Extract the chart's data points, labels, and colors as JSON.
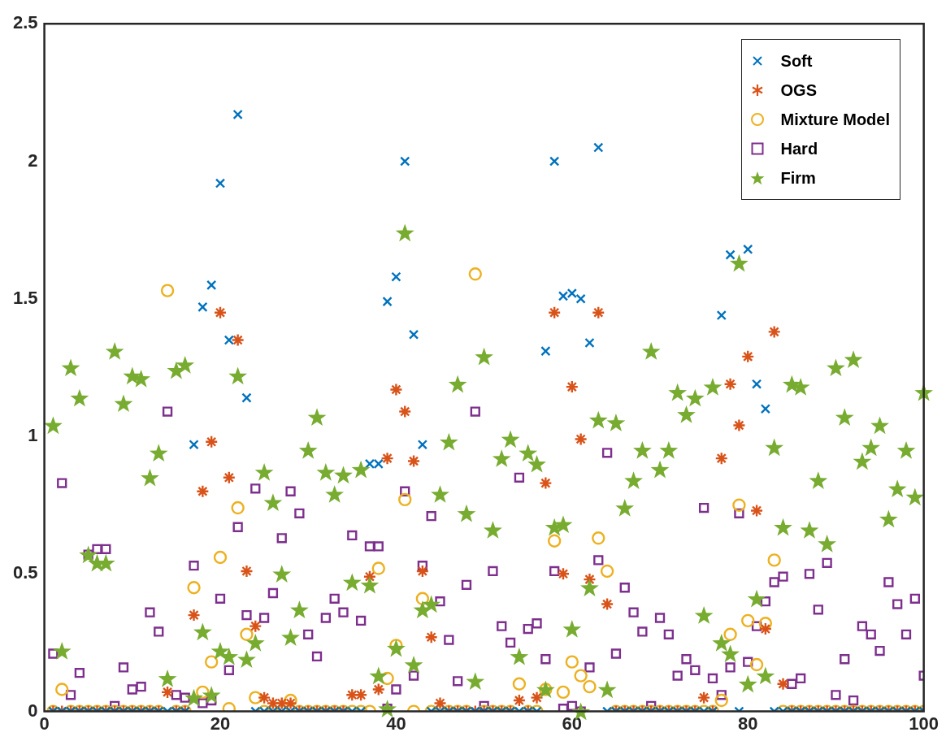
{
  "chart_data": {
    "type": "scatter",
    "x": [
      1,
      2,
      3,
      4,
      5,
      6,
      7,
      8,
      9,
      10,
      11,
      12,
      13,
      14,
      15,
      16,
      17,
      18,
      19,
      20,
      21,
      22,
      23,
      24,
      25,
      26,
      27,
      28,
      29,
      30,
      31,
      32,
      33,
      34,
      35,
      36,
      37,
      38,
      39,
      40,
      41,
      42,
      43,
      44,
      45,
      46,
      47,
      48,
      49,
      50,
      51,
      52,
      53,
      54,
      55,
      56,
      57,
      58,
      59,
      60,
      61,
      62,
      63,
      64,
      65,
      66,
      67,
      68,
      69,
      70,
      71,
      72,
      73,
      74,
      75,
      76,
      77,
      78,
      79,
      80,
      81,
      82,
      83,
      84,
      85,
      86,
      87,
      88,
      89,
      90,
      91,
      92,
      93,
      94,
      95,
      96,
      97,
      98,
      99,
      100
    ],
    "xlim": [
      0,
      100
    ],
    "xticks": [
      0,
      20,
      40,
      60,
      80,
      100
    ],
    "ylim": [
      0,
      2.5
    ],
    "yticks": [
      0,
      0.5,
      1,
      1.5,
      2,
      2.5
    ],
    "grid": false,
    "legend": "top right",
    "series": [
      {
        "name": "Soft",
        "color": "#0072bd",
        "marker": "cross",
        "values": [
          0,
          0,
          0,
          0,
          0,
          0,
          0,
          0,
          0,
          0,
          0,
          0,
          0,
          0,
          0,
          0,
          0.97,
          1.47,
          1.55,
          1.92,
          1.35,
          2.17,
          1.14,
          0,
          0,
          0,
          0,
          0,
          0,
          0,
          0,
          0,
          0,
          0,
          0,
          0,
          0.9,
          0.9,
          1.49,
          1.58,
          2.0,
          1.37,
          0.97,
          0,
          0,
          0,
          0,
          0,
          0,
          0,
          0,
          0,
          0,
          0,
          0,
          0,
          1.31,
          2.0,
          1.51,
          1.52,
          1.5,
          1.34,
          2.05,
          0,
          0,
          0,
          0,
          0,
          0,
          0,
          0,
          0,
          0,
          0,
          0,
          0,
          1.44,
          1.66,
          0,
          1.68,
          1.19,
          1.1,
          0,
          0,
          0,
          0,
          0,
          0,
          0,
          0,
          0,
          0,
          0,
          0,
          0,
          0,
          0,
          0,
          0,
          0
        ]
      },
      {
        "name": "OGS",
        "color": "#d95319",
        "values": [
          0,
          0,
          0,
          0,
          0,
          0,
          0,
          0,
          0,
          0,
          0,
          0,
          0,
          0.07,
          0,
          0,
          0.35,
          0.8,
          0.98,
          1.45,
          0.85,
          1.35,
          0.51,
          0.31,
          0.05,
          0.03,
          0.03,
          0.03,
          0,
          0,
          0,
          0,
          0,
          0,
          0.06,
          0.06,
          0.49,
          0.08,
          0.92,
          1.17,
          1.09,
          0.91,
          0.51,
          0.27,
          0.03,
          0,
          0,
          0,
          0,
          0,
          0,
          0,
          0,
          0.04,
          0,
          0.05,
          0.83,
          1.45,
          0.5,
          1.18,
          0.99,
          0.48,
          1.45,
          0.39,
          0,
          0,
          0,
          0,
          0,
          0,
          0,
          0,
          0,
          0,
          0.05,
          0,
          0.92,
          1.19,
          1.04,
          1.29,
          0.73,
          0.3,
          1.38,
          0.1,
          0,
          0,
          0,
          0,
          0,
          0,
          0,
          0,
          0,
          0,
          0,
          0,
          0,
          0,
          0,
          0
        ]
      },
      {
        "name": "Mixture Model",
        "color": "#edb120",
        "marker": "circle",
        "values": [
          0,
          0.08,
          0,
          0,
          0,
          0,
          0,
          0,
          0,
          0,
          0,
          0,
          0,
          1.53,
          0,
          0,
          0.45,
          0.07,
          0.18,
          0.56,
          0.01,
          0.74,
          0.28,
          0.05,
          0,
          0,
          0,
          0.04,
          0,
          0,
          0,
          0,
          0,
          0,
          0,
          0,
          0,
          0.52,
          0.12,
          0.24,
          0.77,
          0,
          0.41,
          0,
          0,
          0,
          0,
          0,
          1.59,
          0,
          0,
          0,
          0,
          0.1,
          0,
          0,
          0.08,
          0.62,
          0.07,
          0.18,
          0.13,
          0.09,
          0.63,
          0.51,
          0,
          0,
          0,
          0,
          0,
          0,
          0,
          0,
          0,
          0,
          0,
          0,
          0.04,
          0.28,
          0.75,
          0.33,
          0.17,
          0.32,
          0.55,
          0,
          0,
          0,
          0,
          0,
          0,
          0,
          0,
          0,
          0,
          0,
          0,
          0,
          0,
          0,
          0,
          0
        ]
      },
      {
        "name": "Hard",
        "color": "#7e2f8e",
        "marker": "square",
        "values": [
          0.21,
          0.83,
          0.06,
          0.14,
          0.57,
          0.59,
          0.59,
          0.02,
          0.16,
          0.08,
          0.09,
          0.36,
          0.29,
          1.09,
          0.06,
          0.05,
          0.53,
          0.03,
          0.04,
          0.41,
          0.15,
          0.67,
          0.35,
          0.81,
          0.34,
          0.43,
          0.63,
          0.8,
          0.72,
          0.28,
          0.2,
          0.34,
          0.41,
          0.36,
          0.64,
          0.33,
          0.6,
          0.6,
          0.01,
          0.08,
          0.8,
          0.13,
          0.53,
          0.71,
          0.4,
          0.26,
          0.11,
          0.46,
          1.09,
          0.02,
          0.51,
          0.31,
          0.25,
          0.85,
          0.3,
          0.32,
          0.19,
          0.51,
          0.01,
          0.02,
          0,
          0.16,
          0.55,
          0.94,
          0.21,
          0.45,
          0.36,
          0.29,
          0.02,
          0.34,
          0.28,
          0.13,
          0.19,
          0.15,
          0.74,
          0.12,
          0.06,
          0.16,
          0.72,
          0.18,
          0.31,
          0.4,
          0.47,
          0.49,
          0.1,
          0.12,
          0.5,
          0.37,
          0.54,
          0.06,
          0.19,
          0.04,
          0.31,
          0.28,
          0.22,
          0.47,
          0.39,
          0.28,
          0.41,
          0.13
        ]
      },
      {
        "name": "Firm",
        "color": "#77ac30",
        "marker": "star",
        "values": [
          1.04,
          0.22,
          1.25,
          1.14,
          0.57,
          0.54,
          0.54,
          1.31,
          1.12,
          1.22,
          1.21,
          0.85,
          0.94,
          0.12,
          1.24,
          1.26,
          0.05,
          0.29,
          0.06,
          0.22,
          0.2,
          1.22,
          0.19,
          0.25,
          0.87,
          0.76,
          0.5,
          0.27,
          0.37,
          0.95,
          1.07,
          0.87,
          0.79,
          0.86,
          0.47,
          0.88,
          0.46,
          0.13,
          0.01,
          0.23,
          1.74,
          0.17,
          0.37,
          0.39,
          0.79,
          0.98,
          1.19,
          0.72,
          0.11,
          1.29,
          0.66,
          0.92,
          0.99,
          0.2,
          0.94,
          0.9,
          0.08,
          0.67,
          0.68,
          0.3,
          0,
          0.45,
          1.06,
          0.08,
          1.05,
          0.74,
          0.84,
          0.95,
          1.31,
          0.88,
          0.95,
          1.16,
          1.08,
          1.14,
          0.35,
          1.18,
          0.25,
          0.21,
          1.63,
          0.1,
          0.41,
          0.13,
          0.96,
          0.67,
          1.19,
          1.18,
          0.66,
          0.84,
          0.61,
          1.25,
          1.07,
          1.28,
          0.91,
          0.96,
          1.04,
          0.7,
          0.81,
          0.95,
          0.78,
          1.16
        ]
      }
    ]
  }
}
